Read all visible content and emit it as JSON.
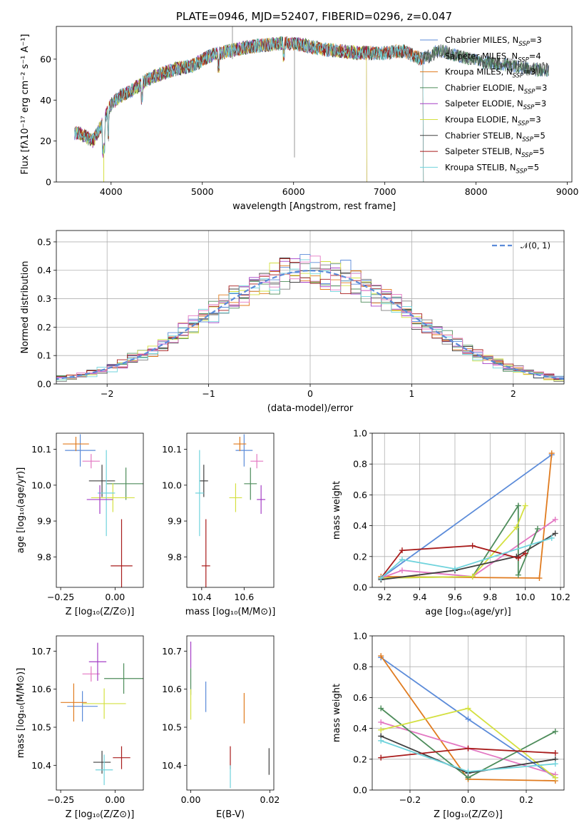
{
  "colors": {
    "series": [
      "#5b8bd9",
      "#7f7f7f",
      "#e07b1f",
      "#4d8c5a",
      "#a53ec6",
      "#d4e040",
      "#404040",
      "#a81b1b",
      "#6fd3dc"
    ],
    "pink": "#e377c2",
    "grid": "#b0b0b0"
  },
  "chart_data": [
    {
      "id": "spectrum",
      "type": "line",
      "title": "PLATE=0946, MJD=52407, FIBERID=0296, z=0.047",
      "xlabel": "wavelength [Angstrom, rest frame]",
      "ylabel": "Flux [fλ10⁻¹⁷ erg cm⁻² s⁻¹ A⁻¹]",
      "xlim": [
        3400,
        9050
      ],
      "ylim": [
        0,
        76
      ],
      "xticks": [
        "4000",
        "5000",
        "6000",
        "7000",
        "8000",
        "9000"
      ],
      "yticks": [
        "0",
        "20",
        "40",
        "60"
      ],
      "grid": false,
      "legend_position": "top-right",
      "legend": [
        {
          "label": "Chabrier MILES, N",
          "sub": "SSP",
          "suffix": "=3"
        },
        {
          "label": "Salpeter MILES, N",
          "sub": "SSP",
          "suffix": "=4"
        },
        {
          "label": "Kroupa MILES, N",
          "sub": "SSP",
          "suffix": "=3"
        },
        {
          "label": "Chabrier ELODIE, N",
          "sub": "SSP",
          "suffix": "=3"
        },
        {
          "label": "Salpeter ELODIE, N",
          "sub": "SSP",
          "suffix": "=3"
        },
        {
          "label": "Kroupa ELODIE, N",
          "sub": "SSP",
          "suffix": "=3"
        },
        {
          "label": "Chabrier STELIB, N",
          "sub": "SSP",
          "suffix": "=5"
        },
        {
          "label": "Salpeter STELIB, N",
          "sub": "SSP",
          "suffix": "=5"
        },
        {
          "label": "Kroupa STELIB, N",
          "sub": "SSP",
          "suffix": "=5"
        }
      ],
      "continuum_knots": [
        [
          3650,
          24
        ],
        [
          3800,
          20
        ],
        [
          3900,
          28
        ],
        [
          4000,
          38
        ],
        [
          4100,
          42
        ],
        [
          4200,
          44
        ],
        [
          4300,
          47
        ],
        [
          4400,
          50
        ],
        [
          4500,
          52
        ],
        [
          4700,
          55
        ],
        [
          4900,
          57
        ],
        [
          5100,
          62
        ],
        [
          5300,
          64
        ],
        [
          5500,
          66
        ],
        [
          5700,
          67
        ],
        [
          5900,
          68
        ],
        [
          6100,
          67
        ],
        [
          6300,
          65
        ],
        [
          6500,
          64
        ],
        [
          6700,
          63
        ],
        [
          7000,
          63
        ],
        [
          7200,
          64
        ],
        [
          7400,
          60
        ],
        [
          7600,
          64
        ],
        [
          7800,
          62
        ],
        [
          8000,
          59
        ],
        [
          8200,
          58
        ],
        [
          8400,
          57
        ],
        [
          8600,
          55
        ],
        [
          8800,
          55
        ]
      ],
      "series_ranges": [
        [
          3600,
          8800
        ],
        [
          3600,
          8800
        ],
        [
          3600,
          7420
        ],
        [
          3600,
          8800
        ],
        [
          3600,
          6800
        ],
        [
          3600,
          6800
        ],
        [
          3600,
          8800
        ],
        [
          3600,
          7420
        ],
        [
          3600,
          7420
        ]
      ]
    },
    {
      "id": "residuals",
      "type": "histogram",
      "xlabel": "(data-model)/error",
      "ylabel": "Normed distribution",
      "xlim": [
        -2.5,
        2.5
      ],
      "ylim": [
        0,
        0.54
      ],
      "xticks": [
        "−2",
        "−1",
        "0",
        "1",
        "2"
      ],
      "yticks": [
        "0.0",
        "0.1",
        "0.2",
        "0.3",
        "0.4",
        "0.5"
      ],
      "grid": true,
      "legend_position": "top-right",
      "legend": [
        "𝒩(0, 1)"
      ],
      "bin_width": 0.1,
      "reference_curve": "standard normal N(0,1), dashed",
      "series_colors_index": [
        0,
        1,
        2,
        3,
        4,
        5,
        6,
        7,
        8,
        9
      ]
    },
    {
      "id": "age_vs_Z",
      "type": "scatter",
      "xlabel": "Z [log₁₀(Z/Z⊙)]",
      "ylabel": "age  [log₁₀(age/yr)]",
      "xlim": [
        -0.27,
        0.13
      ],
      "ylim": [
        9.715,
        10.145
      ],
      "xticks": [
        "−0.25",
        "0.00"
      ],
      "yticks": [
        "9.8",
        "9.9",
        "10.0",
        "10.1"
      ],
      "points": [
        {
          "color": 0,
          "x": -0.16,
          "y": 10.097,
          "xerr": 0.07,
          "yerr": 0.045
        },
        {
          "color": 2,
          "x": -0.18,
          "y": 10.115,
          "xerr": 0.06,
          "yerr": 0.02
        },
        {
          "color": "pink",
          "x": -0.11,
          "y": 10.067,
          "xerr": 0.04,
          "yerr": 0.02
        },
        {
          "color": 6,
          "x": -0.06,
          "y": 10.012,
          "xerr": 0.06,
          "yerr": 0.045
        },
        {
          "color": 3,
          "x": 0.05,
          "y": 10.004,
          "xerr": 0.09,
          "yerr": 0.045
        },
        {
          "color": 5,
          "x": -0.01,
          "y": 9.965,
          "xerr": 0.1,
          "yerr": 0.04
        },
        {
          "color": 8,
          "x": -0.04,
          "y": 9.978,
          "xerr": 0.04,
          "yerr": 0.12
        },
        {
          "color": 4,
          "x": -0.07,
          "y": 9.96,
          "xerr": 0.06,
          "yerr": 0.04
        },
        {
          "color": 7,
          "x": 0.03,
          "y": 9.775,
          "xerr": 0.05,
          "yerr": 0.13
        }
      ]
    },
    {
      "id": "age_vs_mass",
      "type": "scatter",
      "xlabel": "mass [log₁₀(M/M⊙)]",
      "ylabel": "",
      "xlim": [
        10.33,
        10.74
      ],
      "ylim": [
        9.715,
        10.145
      ],
      "xticks": [
        "10.4",
        "10.6"
      ],
      "yticks": [
        "9.8",
        "9.9",
        "10.0",
        "10.1"
      ],
      "points": [
        {
          "color": 0,
          "x": 10.6,
          "y": 10.097,
          "xerr": 0.04,
          "yerr": 0.045
        },
        {
          "color": 2,
          "x": 10.58,
          "y": 10.115,
          "xerr": 0.03,
          "yerr": 0.02
        },
        {
          "color": "pink",
          "x": 10.66,
          "y": 10.067,
          "xerr": 0.03,
          "yerr": 0.02
        },
        {
          "color": 6,
          "x": 10.41,
          "y": 10.012,
          "xerr": 0.02,
          "yerr": 0.045
        },
        {
          "color": 3,
          "x": 10.63,
          "y": 10.004,
          "xerr": 0.03,
          "yerr": 0.045
        },
        {
          "color": 5,
          "x": 10.56,
          "y": 9.965,
          "xerr": 0.03,
          "yerr": 0.04
        },
        {
          "color": 8,
          "x": 10.39,
          "y": 9.978,
          "xerr": 0.02,
          "yerr": 0.12
        },
        {
          "color": 4,
          "x": 10.68,
          "y": 9.96,
          "xerr": 0.02,
          "yerr": 0.04
        },
        {
          "color": 7,
          "x": 10.42,
          "y": 9.775,
          "xerr": 0.02,
          "yerr": 0.13
        }
      ]
    },
    {
      "id": "weight_vs_age",
      "type": "line",
      "xlabel": "age  [log₁₀(age/yr)]",
      "ylabel": "mass weight",
      "xlim": [
        9.13,
        10.22
      ],
      "ylim": [
        0,
        1
      ],
      "xticks": [
        "9.2",
        "9.4",
        "9.6",
        "9.8",
        "10.0",
        "10.2"
      ],
      "yticks": [
        "0.0",
        "0.2",
        "0.4",
        "0.6",
        "0.8",
        "1.0"
      ],
      "grid": true,
      "series": [
        {
          "color": 0,
          "x": [
            9.18,
            10.15
          ],
          "y": [
            0.06,
            0.86
          ]
        },
        {
          "color": 2,
          "x": [
            9.18,
            10.08,
            10.15
          ],
          "y": [
            0.07,
            0.06,
            0.87
          ]
        },
        {
          "color": "pink",
          "x": [
            9.18,
            9.3,
            9.7,
            10.17
          ],
          "y": [
            0.06,
            0.11,
            0.07,
            0.44
          ]
        },
        {
          "color": 3,
          "x": [
            9.18,
            9.7,
            9.96,
            9.96,
            10.07
          ],
          "y": [
            0.06,
            0.07,
            0.53,
            0.08,
            0.38
          ]
        },
        {
          "color": 5,
          "x": [
            9.18,
            9.7,
            9.95,
            10.0
          ],
          "y": [
            0.06,
            0.07,
            0.39,
            0.53
          ]
        },
        {
          "color": 6,
          "x": [
            9.18,
            9.6,
            9.95,
            10.17
          ],
          "y": [
            0.05,
            0.11,
            0.2,
            0.35
          ]
        },
        {
          "color": 7,
          "x": [
            9.18,
            9.3,
            9.7,
            9.96,
            10.0
          ],
          "y": [
            0.06,
            0.24,
            0.27,
            0.19,
            0.22
          ]
        },
        {
          "color": 8,
          "x": [
            9.18,
            9.3,
            9.6,
            10.15
          ],
          "y": [
            0.06,
            0.18,
            0.12,
            0.32
          ]
        }
      ]
    },
    {
      "id": "mass_vs_Z",
      "type": "scatter",
      "xlabel": "Z [log₁₀(Z/Z⊙)]",
      "ylabel": "mass [log₁₀(M/M⊙)]",
      "xlim": [
        -0.27,
        0.13
      ],
      "ylim": [
        10.335,
        10.74
      ],
      "xticks": [
        "−0.25",
        "0.00"
      ],
      "yticks": [
        "10.4",
        "10.5",
        "10.6",
        "10.7"
      ],
      "points": [
        {
          "color": 0,
          "x": -0.15,
          "y": 10.555,
          "xerr": 0.07,
          "yerr": 0.04
        },
        {
          "color": 2,
          "x": -0.19,
          "y": 10.565,
          "xerr": 0.06,
          "yerr": 0.05
        },
        {
          "color": "pink",
          "x": -0.11,
          "y": 10.64,
          "xerr": 0.04,
          "yerr": 0.02
        },
        {
          "color": 4,
          "x": -0.08,
          "y": 10.672,
          "xerr": 0.04,
          "yerr": 0.05
        },
        {
          "color": 3,
          "x": 0.04,
          "y": 10.628,
          "xerr": 0.09,
          "yerr": 0.04
        },
        {
          "color": 5,
          "x": -0.05,
          "y": 10.562,
          "xerr": 0.1,
          "yerr": 0.04
        },
        {
          "color": 6,
          "x": -0.06,
          "y": 10.408,
          "xerr": 0.04,
          "yerr": 0.03
        },
        {
          "color": 7,
          "x": 0.03,
          "y": 10.42,
          "xerr": 0.04,
          "yerr": 0.03
        },
        {
          "color": 8,
          "x": -0.05,
          "y": 10.388,
          "xerr": 0.04,
          "yerr": 0.04
        }
      ]
    },
    {
      "id": "mass_vs_EBV",
      "type": "scatter",
      "xlabel": "E(B-V)",
      "ylabel": "",
      "xlim": [
        -0.001,
        0.021
      ],
      "ylim": [
        10.335,
        10.74
      ],
      "xticks": [
        "0.00",
        "0.02"
      ],
      "yticks": [
        "10.4",
        "10.5",
        "10.6",
        "10.7"
      ],
      "points": [
        {
          "color": 4,
          "x": 0.0,
          "y": 10.69,
          "xerr": 0.0,
          "yerr": 0.035
        },
        {
          "color": 3,
          "x": 0.0,
          "y": 10.62,
          "xerr": 0.0,
          "yerr": 0.035
        },
        {
          "color": 5,
          "x": 0.0,
          "y": 10.56,
          "xerr": 0.0,
          "yerr": 0.04
        },
        {
          "color": 0,
          "x": 0.0038,
          "y": 10.58,
          "xerr": 0.0,
          "yerr": 0.04
        },
        {
          "color": 2,
          "x": 0.0135,
          "y": 10.55,
          "xerr": 0.0,
          "yerr": 0.04
        },
        {
          "color": 7,
          "x": 0.01,
          "y": 10.42,
          "xerr": 0.0,
          "yerr": 0.03
        },
        {
          "color": 8,
          "x": 0.01,
          "y": 10.37,
          "xerr": 0.0,
          "yerr": 0.03
        },
        {
          "color": 6,
          "x": 0.0198,
          "y": 10.41,
          "xerr": 0.0,
          "yerr": 0.035
        }
      ]
    },
    {
      "id": "weight_vs_Z",
      "type": "line",
      "xlabel": "Z [log₁₀(Z/Z⊙)]",
      "ylabel": "mass weight",
      "xlim": [
        -0.33,
        0.33
      ],
      "ylim": [
        0,
        1
      ],
      "xticks": [
        "−0.2",
        "0.0",
        "0.2"
      ],
      "yticks": [
        "0.0",
        "0.2",
        "0.4",
        "0.6",
        "0.8",
        "1.0"
      ],
      "grid": true,
      "series": [
        {
          "color": 0,
          "x": [
            -0.3,
            0.0,
            0.3
          ],
          "y": [
            0.86,
            0.46,
            0.08
          ]
        },
        {
          "color": 2,
          "x": [
            -0.3,
            0.0,
            0.3
          ],
          "y": [
            0.87,
            0.07,
            0.06
          ]
        },
        {
          "color": "pink",
          "x": [
            -0.3,
            0.0,
            0.3
          ],
          "y": [
            0.44,
            0.27,
            0.1
          ]
        },
        {
          "color": 3,
          "x": [
            -0.3,
            0.0,
            0.3
          ],
          "y": [
            0.53,
            0.08,
            0.38
          ]
        },
        {
          "color": 5,
          "x": [
            -0.3,
            0.0,
            0.3
          ],
          "y": [
            0.39,
            0.53,
            0.08
          ]
        },
        {
          "color": 6,
          "x": [
            -0.3,
            0.0,
            0.3
          ],
          "y": [
            0.35,
            0.11,
            0.2
          ]
        },
        {
          "color": 7,
          "x": [
            -0.3,
            0.0,
            0.3
          ],
          "y": [
            0.21,
            0.27,
            0.24
          ]
        },
        {
          "color": 8,
          "x": [
            -0.3,
            0.0,
            0.3
          ],
          "y": [
            0.32,
            0.12,
            0.17
          ]
        }
      ]
    }
  ]
}
